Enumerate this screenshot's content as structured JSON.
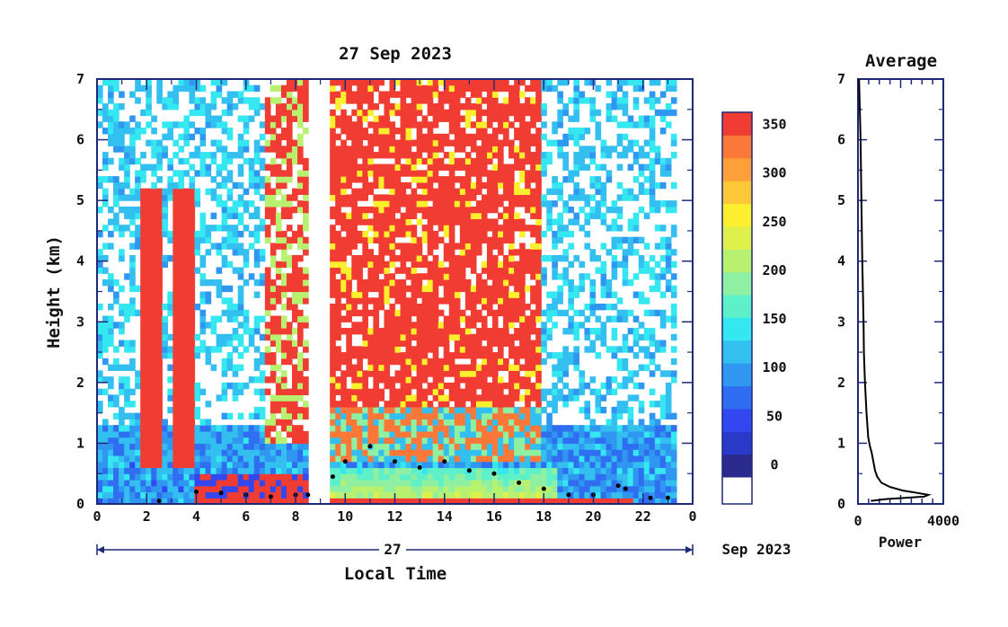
{
  "chart_data": [
    {
      "type": "heatmap",
      "title": "27 Sep 2023",
      "xlabel": "Local Time",
      "ylabel": "Height (km)",
      "x_ticks": [
        "0",
        "2",
        "4",
        "6",
        "8",
        "10",
        "12",
        "14",
        "16",
        "18",
        "20",
        "22",
        "0"
      ],
      "y_ticks": [
        "0",
        "1",
        "2",
        "3",
        "4",
        "5",
        "6",
        "7"
      ],
      "xlim": [
        0,
        24
      ],
      "ylim": [
        0,
        7
      ],
      "date_axis": {
        "day_label": "27",
        "month_label": "Sep 2023"
      },
      "colorbar": {
        "tick_labels": [
          "0",
          "50",
          "100",
          "150",
          "200",
          "250",
          "300",
          "350"
        ],
        "range": [
          0,
          375
        ],
        "colors": [
          "#2b2b8e",
          "#2a3ac8",
          "#3247f0",
          "#2f6ef0",
          "#2f97f0",
          "#33bff0",
          "#35e7f0",
          "#5ef0c8",
          "#8ef0a0",
          "#b8f070",
          "#e0f04a",
          "#fcf02e",
          "#fcc837",
          "#fca037",
          "#fc7838",
          "#f03c32"
        ]
      },
      "boundary_layer_height_km": {
        "x": [
          2.5,
          4,
          5,
          6,
          7,
          8,
          8.5,
          9.5,
          10,
          11,
          12,
          13,
          14,
          15,
          16,
          17,
          18,
          19,
          20,
          21,
          21.3,
          22.3,
          23
        ],
        "y": [
          0.05,
          0.2,
          0.18,
          0.15,
          0.12,
          0.15,
          0.15,
          0.45,
          0.7,
          0.95,
          0.7,
          0.6,
          0.7,
          0.55,
          0.5,
          0.35,
          0.25,
          0.15,
          0.15,
          0.3,
          0.25,
          0.1,
          0.1
        ]
      }
    },
    {
      "type": "line",
      "title": "Average",
      "xlabel": "Power",
      "x_ticks": [
        "0",
        "4000"
      ],
      "xlim": [
        0,
        4000
      ],
      "ylim": [
        0,
        7
      ],
      "series": [
        {
          "x": [
            50,
            120,
            160,
            200,
            230,
            260,
            280,
            330,
            400,
            480,
            560,
            640,
            720,
            800,
            900,
            1100,
            1500,
            2100,
            2800,
            3300,
            3100,
            2200,
            1300,
            600
          ],
          "y": [
            7.0,
            6.0,
            5.0,
            4.0,
            3.5,
            3.0,
            2.5,
            2.0,
            1.5,
            1.1,
            0.95,
            0.85,
            0.7,
            0.55,
            0.45,
            0.35,
            0.28,
            0.22,
            0.18,
            0.15,
            0.12,
            0.1,
            0.08,
            0.05
          ]
        }
      ]
    }
  ]
}
